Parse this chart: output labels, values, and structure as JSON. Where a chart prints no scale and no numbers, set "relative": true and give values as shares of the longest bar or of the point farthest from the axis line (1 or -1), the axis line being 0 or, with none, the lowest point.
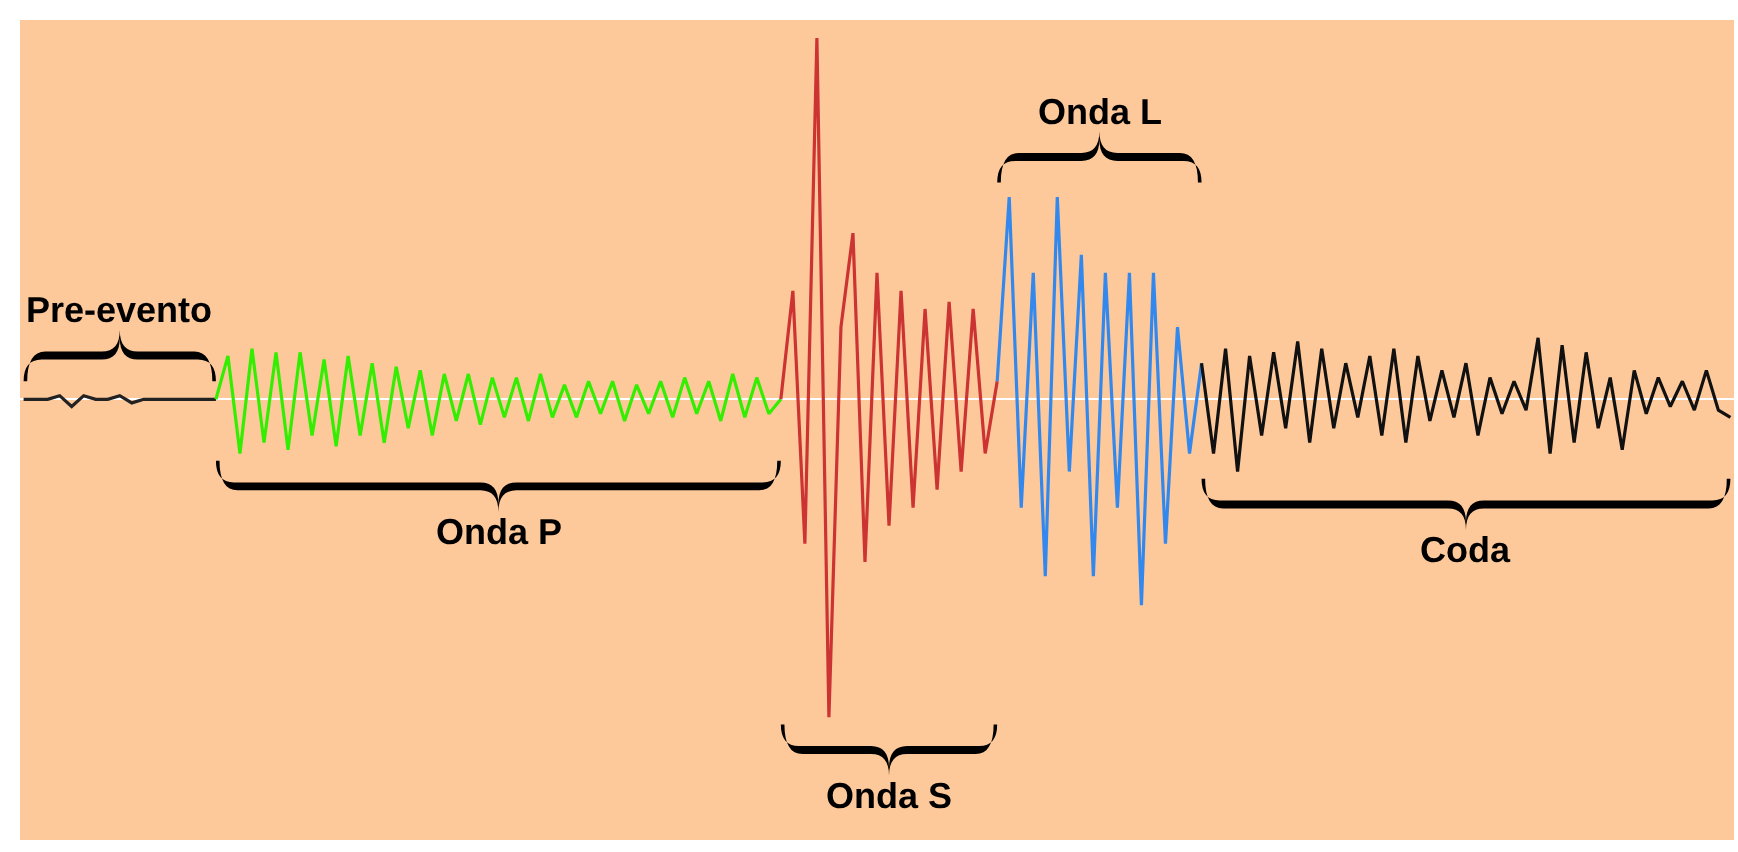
{
  "chart_data": {
    "type": "line",
    "relative": true,
    "legend": false,
    "grid": false,
    "marker": "none",
    "line_style": "solid",
    "categories": [
      null,
      null,
      null,
      null,
      null,
      null,
      null,
      null,
      null,
      null,
      null,
      null,
      null,
      null,
      null,
      null,
      null,
      null,
      null,
      null,
      null,
      null,
      null,
      null,
      null,
      null,
      null,
      null,
      null,
      null,
      null,
      null,
      null,
      null,
      null,
      null,
      null,
      null,
      null,
      null,
      null,
      null,
      null,
      null,
      null,
      null,
      null,
      null,
      null,
      null,
      null,
      null,
      null,
      null,
      null,
      null,
      null,
      null,
      null,
      null,
      null,
      null,
      null,
      null,
      null,
      null,
      null,
      null,
      null,
      null,
      null,
      null,
      null,
      null,
      null,
      null,
      null,
      null,
      null,
      null,
      null,
      null,
      null,
      null,
      null,
      null,
      null,
      null,
      null,
      null,
      null,
      null,
      null,
      null,
      null,
      null,
      null,
      null,
      null,
      null,
      null,
      null,
      null,
      null,
      null,
      null,
      null,
      null,
      null,
      null,
      null,
      null,
      null,
      null,
      null,
      null,
      null,
      null,
      null,
      null,
      null,
      null,
      null,
      null,
      null,
      null,
      null,
      null,
      null,
      null,
      null,
      null,
      null,
      null,
      null,
      null,
      null,
      null,
      null,
      null,
      null,
      null,
      null
    ],
    "series": [
      {
        "color": "#222222",
        "values": [
          0,
          0,
          0,
          0.01,
          -0.02,
          0.01,
          0,
          0,
          0.01,
          -0.01,
          0,
          0,
          0,
          0,
          0,
          0,
          0,
          null,
          null,
          null,
          null,
          null,
          null,
          null,
          null,
          null,
          null,
          null,
          null,
          null,
          null,
          null,
          null,
          null,
          null,
          null,
          null,
          null,
          null,
          null,
          null,
          null,
          null,
          null,
          null,
          null,
          null,
          null,
          null,
          null,
          null,
          null,
          null,
          null,
          null,
          null,
          null,
          null,
          null,
          null,
          null,
          null,
          null,
          null,
          null,
          null,
          null,
          null,
          null,
          null,
          null,
          null,
          null,
          null,
          null,
          null,
          null,
          null,
          null,
          null,
          null,
          null,
          null,
          null,
          null,
          null,
          null,
          null,
          null,
          null,
          null,
          null,
          null,
          null,
          null,
          null,
          null,
          null,
          null,
          null,
          null,
          null,
          null,
          null,
          null,
          null,
          null,
          null,
          null,
          null,
          null,
          null,
          null,
          null,
          null,
          null,
          null,
          null,
          null,
          null,
          null,
          null,
          null,
          null,
          null,
          null,
          null,
          null,
          null,
          null,
          null,
          null,
          null,
          null,
          null,
          null,
          null,
          null,
          null,
          null,
          null,
          null,
          null
        ]
      },
      {
        "color": "#33ee00",
        "values": [
          null,
          null,
          null,
          null,
          null,
          null,
          null,
          null,
          null,
          null,
          null,
          null,
          null,
          null,
          null,
          null,
          0,
          0.12,
          -0.15,
          0.14,
          -0.12,
          0.13,
          -0.14,
          0.13,
          -0.1,
          0.11,
          -0.13,
          0.12,
          -0.1,
          0.1,
          -0.12,
          0.09,
          -0.08,
          0.08,
          -0.1,
          0.07,
          -0.06,
          0.07,
          -0.07,
          0.06,
          -0.05,
          0.06,
          -0.06,
          0.07,
          -0.05,
          0.04,
          -0.05,
          0.05,
          -0.04,
          0.05,
          -0.06,
          0.04,
          -0.04,
          0.05,
          -0.05,
          0.06,
          -0.04,
          0.05,
          -0.06,
          0.07,
          -0.05,
          0.06,
          -0.04,
          0,
          null,
          null,
          null,
          null,
          null,
          null,
          null,
          null,
          null,
          null,
          null,
          null,
          null,
          null,
          null,
          null,
          null,
          null,
          null,
          null,
          null,
          null,
          null,
          null,
          null,
          null,
          null,
          null,
          null,
          null,
          null,
          null,
          null,
          null,
          null,
          null,
          null,
          null,
          null,
          null,
          null,
          null,
          null,
          null,
          null,
          null,
          null,
          null,
          null,
          null,
          null,
          null,
          null,
          null,
          null,
          null,
          null,
          null,
          null,
          null,
          null,
          null,
          null,
          null,
          null,
          null,
          null,
          null,
          null,
          null,
          null,
          null,
          null,
          null,
          null,
          null,
          null,
          null,
          null
        ]
      },
      {
        "color": "#cc3333",
        "values": [
          null,
          null,
          null,
          null,
          null,
          null,
          null,
          null,
          null,
          null,
          null,
          null,
          null,
          null,
          null,
          null,
          null,
          null,
          null,
          null,
          null,
          null,
          null,
          null,
          null,
          null,
          null,
          null,
          null,
          null,
          null,
          null,
          null,
          null,
          null,
          null,
          null,
          null,
          null,
          null,
          null,
          null,
          null,
          null,
          null,
          null,
          null,
          null,
          null,
          null,
          null,
          null,
          null,
          null,
          null,
          null,
          null,
          null,
          null,
          null,
          null,
          null,
          null,
          0,
          0.3,
          -0.4,
          1.0,
          -0.88,
          0.2,
          0.46,
          -0.45,
          0.35,
          -0.35,
          0.3,
          -0.3,
          0.25,
          -0.25,
          0.27,
          -0.2,
          0.25,
          -0.15,
          0.05,
          null,
          null,
          null,
          null,
          null,
          null,
          null,
          null,
          null,
          null,
          null,
          null,
          null,
          null,
          null,
          null,
          null,
          null,
          null,
          null,
          null,
          null,
          null,
          null,
          null,
          null,
          null,
          null,
          null,
          null,
          null,
          null,
          null,
          null,
          null,
          null,
          null,
          null,
          null,
          null,
          null,
          null,
          null,
          null,
          null,
          null,
          null,
          null,
          null,
          null,
          null,
          null,
          null,
          null,
          null,
          null,
          null,
          null,
          null,
          null,
          null
        ]
      },
      {
        "color": "#3388ee",
        "values": [
          null,
          null,
          null,
          null,
          null,
          null,
          null,
          null,
          null,
          null,
          null,
          null,
          null,
          null,
          null,
          null,
          null,
          null,
          null,
          null,
          null,
          null,
          null,
          null,
          null,
          null,
          null,
          null,
          null,
          null,
          null,
          null,
          null,
          null,
          null,
          null,
          null,
          null,
          null,
          null,
          null,
          null,
          null,
          null,
          null,
          null,
          null,
          null,
          null,
          null,
          null,
          null,
          null,
          null,
          null,
          null,
          null,
          null,
          null,
          null,
          null,
          null,
          null,
          null,
          null,
          null,
          null,
          null,
          null,
          null,
          null,
          null,
          null,
          null,
          null,
          null,
          null,
          null,
          null,
          null,
          null,
          0.05,
          0.56,
          -0.3,
          0.35,
          -0.49,
          0.56,
          -0.2,
          0.4,
          -0.49,
          0.35,
          -0.3,
          0.35,
          -0.57,
          0.35,
          -0.4,
          0.2,
          -0.15,
          0.1,
          null,
          null,
          null,
          null,
          null,
          null,
          null,
          null,
          null,
          null,
          null,
          null,
          null,
          null,
          null,
          null,
          null,
          null,
          null,
          null,
          null,
          null,
          null,
          null,
          null,
          null,
          null,
          null,
          null,
          null,
          null,
          null,
          null,
          null,
          null,
          null,
          null,
          null,
          null,
          null,
          null,
          null,
          null,
          null
        ]
      },
      {
        "color": "#111111",
        "values": [
          null,
          null,
          null,
          null,
          null,
          null,
          null,
          null,
          null,
          null,
          null,
          null,
          null,
          null,
          null,
          null,
          null,
          null,
          null,
          null,
          null,
          null,
          null,
          null,
          null,
          null,
          null,
          null,
          null,
          null,
          null,
          null,
          null,
          null,
          null,
          null,
          null,
          null,
          null,
          null,
          null,
          null,
          null,
          null,
          null,
          null,
          null,
          null,
          null,
          null,
          null,
          null,
          null,
          null,
          null,
          null,
          null,
          null,
          null,
          null,
          null,
          null,
          null,
          null,
          null,
          null,
          null,
          null,
          null,
          null,
          null,
          null,
          null,
          null,
          null,
          null,
          null,
          null,
          null,
          null,
          null,
          null,
          null,
          null,
          null,
          null,
          null,
          null,
          null,
          null,
          null,
          null,
          null,
          null,
          null,
          null,
          null,
          null,
          0.1,
          -0.15,
          0.14,
          -0.2,
          0.12,
          -0.1,
          0.13,
          -0.08,
          0.16,
          -0.12,
          0.14,
          -0.08,
          0.1,
          -0.05,
          0.12,
          -0.1,
          0.14,
          -0.12,
          0.12,
          -0.06,
          0.08,
          -0.05,
          0.1,
          -0.1,
          0.06,
          -0.04,
          0.05,
          -0.03,
          0.17,
          -0.15,
          0.15,
          -0.12,
          0.13,
          -0.08,
          0.06,
          -0.14,
          0.08,
          -0.04,
          0.06,
          -0.02,
          0.05,
          -0.03,
          0.08,
          -0.03,
          -0.05
        ]
      }
    ],
    "annotations": [
      "Pre-evento",
      "Onda P",
      "Onda S",
      "Onda L",
      "Coda"
    ]
  }
}
